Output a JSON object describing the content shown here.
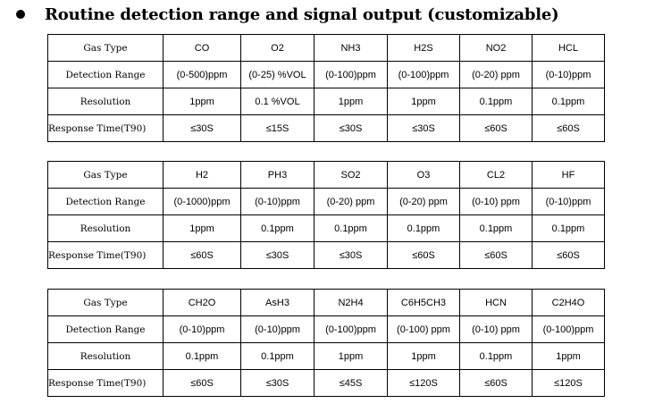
{
  "heading": {
    "title": "Routine detection range and signal output (customizable)"
  },
  "row_labels": [
    "Gas Type",
    "Detection Range",
    "Resolution",
    "Response Time(T90)"
  ],
  "tables": [
    {
      "gas_type": [
        "CO",
        "O2",
        "NH3",
        "H2S",
        "NO2",
        "HCL"
      ],
      "detection_range": [
        "(0-500)ppm",
        "(0-25) %VOL",
        "(0-100)ppm",
        "(0-100)ppm",
        "(0-20) ppm",
        "(0-10)ppm"
      ],
      "resolution": [
        "1ppm",
        "0.1 %VOL",
        "1ppm",
        "1ppm",
        "0.1ppm",
        "0.1ppm"
      ],
      "response_time": [
        "≤30S",
        "≤15S",
        "≤30S",
        "≤30S",
        "≤60S",
        "≤60S"
      ]
    },
    {
      "gas_type": [
        "H2",
        "PH3",
        "SO2",
        "O3",
        "CL2",
        "HF"
      ],
      "detection_range": [
        "(0-1000)ppm",
        "(0-10)ppm",
        "(0-20) ppm",
        "(0-20) ppm",
        "(0-10) ppm",
        "(0-10)ppm"
      ],
      "resolution": [
        "1ppm",
        "0.1ppm",
        "0.1ppm",
        "0.1ppm",
        "0.1ppm",
        "0.1ppm"
      ],
      "response_time": [
        "≤60S",
        "≤30S",
        "≤30S",
        "≤60S",
        "≤60S",
        "≤60S"
      ]
    },
    {
      "gas_type": [
        "CH2O",
        "AsH3",
        "N2H4",
        "C6H5CH3",
        "HCN",
        "C2H4O"
      ],
      "detection_range": [
        "(0-10)ppm",
        "(0-10)ppm",
        "(0-100)ppm",
        "(0-100) ppm",
        "(0-10) ppm",
        "(0-100)ppm"
      ],
      "resolution": [
        "0.1ppm",
        "0.1ppm",
        "1ppm",
        "1ppm",
        "0.1ppm",
        "1ppm"
      ],
      "response_time": [
        "≤60S",
        "≤30S",
        "≤45S",
        "≤120S",
        "≤60S",
        "≤120S"
      ]
    }
  ]
}
